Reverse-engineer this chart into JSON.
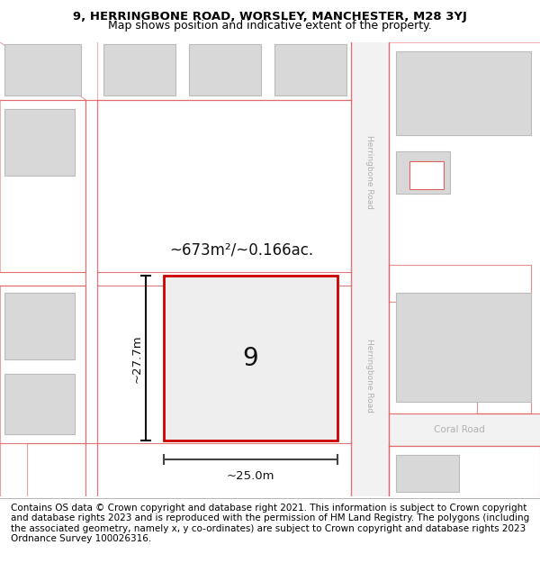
{
  "title_line1": "9, HERRINGBONE ROAD, WORSLEY, MANCHESTER, M28 3YJ",
  "title_line2": "Map shows position and indicative extent of the property.",
  "footer_text": "Contains OS data © Crown copyright and database right 2021. This information is subject to Crown copyright and database rights 2023 and is reproduced with the permission of HM Land Registry. The polygons (including the associated geometry, namely x, y co-ordinates) are subject to Crown copyright and database rights 2023 Ordnance Survey 100026316.",
  "map_bg": "#ffffff",
  "road_line_color": "#e06060",
  "building_fill": "#d8d8d8",
  "building_edge": "#bbbbbb",
  "highlight_fill": "#eeeeee",
  "highlight_edge": "#cc0000",
  "road_label_upper": "Herringbone Road",
  "road_label_lower": "Herringbone Road",
  "road_label_coral": "Coral Road",
  "property_number": "9",
  "area_label": "~673m²/~0.166ac.",
  "width_label": "~25.0m",
  "height_label": "~27.7m",
  "title_fontsize": 9.5,
  "subtitle_fontsize": 9,
  "footer_fontsize": 7.5
}
